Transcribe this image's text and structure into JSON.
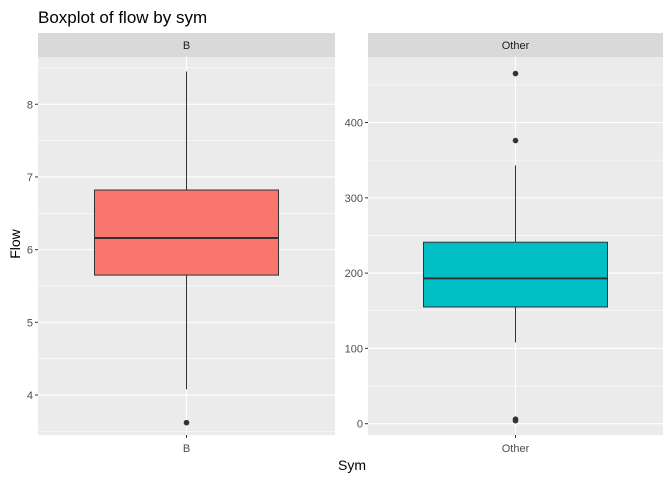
{
  "chart_data": {
    "type": "boxplot",
    "title": "Boxplot of flow by sym",
    "xlabel": "Sym",
    "ylabel": "Flow",
    "grid": true,
    "legend": "none",
    "facets": [
      {
        "strip": "B",
        "category": "B",
        "color": "#F8766D",
        "ylim": [
          3.45,
          8.65
        ],
        "yticks": [
          4,
          5,
          6,
          7,
          8
        ],
        "stats": {
          "whisker_low": 4.08,
          "q1": 5.65,
          "median": 6.16,
          "q3": 6.82,
          "whisker_high": 8.45
        },
        "outliers": [
          3.62
        ]
      },
      {
        "strip": "Other",
        "category": "Other",
        "color": "#00BFC4",
        "ylim": [
          -15,
          487
        ],
        "yticks": [
          0,
          100,
          200,
          300,
          400
        ],
        "stats": {
          "whisker_low": 108,
          "q1": 155,
          "median": 193,
          "q3": 241,
          "whisker_high": 343
        },
        "outliers": [
          465,
          376,
          6,
          4
        ]
      }
    ]
  }
}
